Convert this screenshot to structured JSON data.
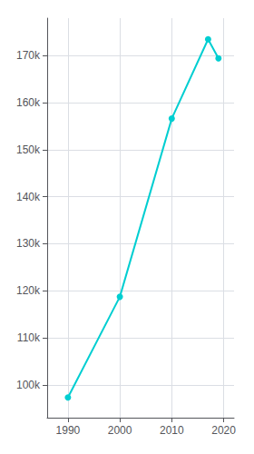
{
  "chart_data": {
    "type": "line",
    "x": [
      1990,
      2000,
      2010,
      2017,
      2019
    ],
    "values": [
      97291,
      118718,
      156633,
      173516,
      169450
    ],
    "color": "#00CED1",
    "marker": "circle",
    "xlim": [
      1986,
      2022
    ],
    "xticks": [
      1990,
      2000,
      2010,
      2020
    ],
    "ylim": [
      93000,
      178000
    ],
    "yticks": [
      {
        "value": 100000,
        "label": "100k"
      },
      {
        "value": 110000,
        "label": "110k"
      },
      {
        "value": 120000,
        "label": "120k"
      },
      {
        "value": 130000,
        "label": "130k"
      },
      {
        "value": 140000,
        "label": "140k"
      },
      {
        "value": 150000,
        "label": "150k"
      },
      {
        "value": 160000,
        "label": "160k"
      },
      {
        "value": 170000,
        "label": "170k"
      }
    ],
    "grid": true
  }
}
